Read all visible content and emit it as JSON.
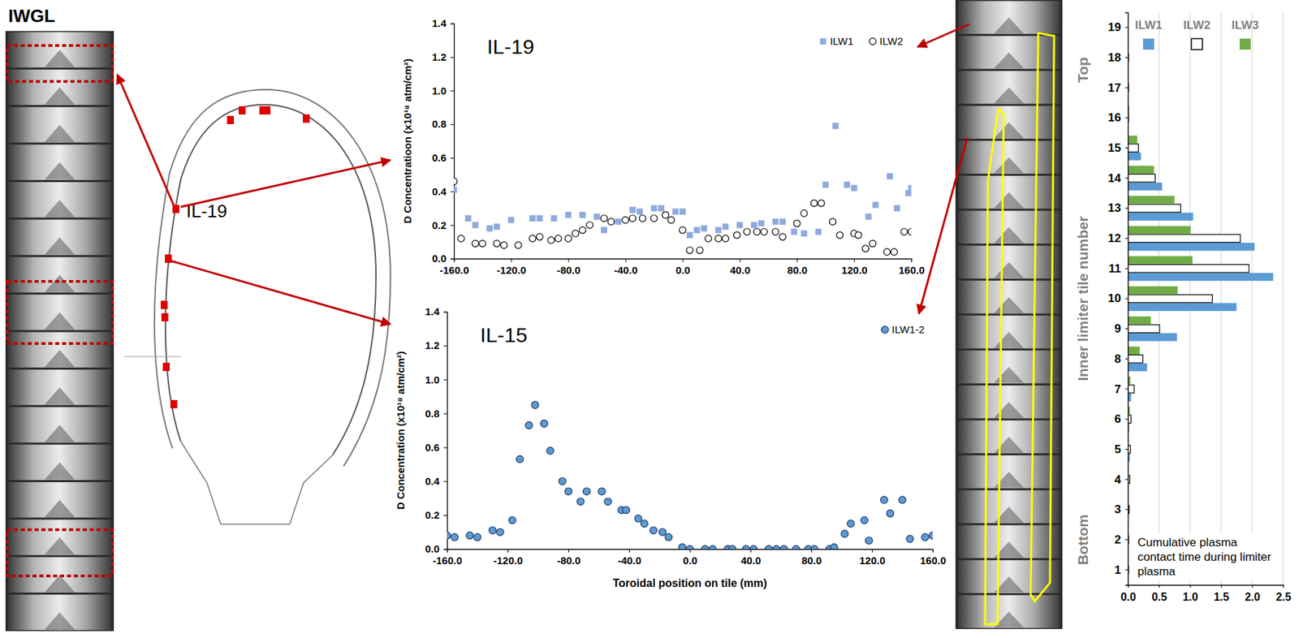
{
  "photo_label": "IWGL",
  "diagram_label": "IL-19",
  "chart_data": [
    {
      "type": "scatter",
      "title": "IL-19",
      "ylabel": "D Concentratioon (x10¹⁸ atm/cm²)",
      "xlim": [
        -160,
        160
      ],
      "xticks": [
        {
          "value": -160,
          "label": "-160.0"
        },
        {
          "value": -120,
          "label": "-120.0"
        },
        {
          "value": -80,
          "label": "-80.0"
        },
        {
          "value": -40,
          "label": "-40.0"
        },
        {
          "value": 0,
          "label": "0.0"
        },
        {
          "value": 40,
          "label": "40.0"
        },
        {
          "value": 80,
          "label": "80.0"
        },
        {
          "value": 120,
          "label": "120.0"
        },
        {
          "value": 160,
          "label": "160.0"
        }
      ],
      "ylim": [
        0,
        1.4
      ],
      "yticks": [
        {
          "value": 0,
          "label": "0.0"
        },
        0.2,
        0.4,
        0.6,
        0.8,
        {
          "value": 1,
          "label": "1.0"
        },
        1.2,
        1.4
      ],
      "legend": "top-right",
      "series": [
        {
          "name": "ILW1",
          "color": "#8faadc",
          "marker": "square",
          "x": [
            -160,
            -150,
            -145,
            -135,
            -130,
            -120,
            -105,
            -100,
            -90,
            -80,
            -70,
            -60,
            -55,
            -45,
            -35,
            -30,
            -20,
            -15,
            -5,
            0,
            5,
            10,
            15,
            25,
            30,
            40,
            50,
            55,
            65,
            70,
            78,
            85,
            95,
            100,
            107,
            115,
            120,
            130,
            135,
            145,
            150,
            158,
            160
          ],
          "values": [
            0.41,
            0.24,
            0.2,
            0.18,
            0.19,
            0.23,
            0.24,
            0.24,
            0.24,
            0.26,
            0.26,
            0.25,
            0.17,
            0.22,
            0.29,
            0.28,
            0.3,
            0.3,
            0.28,
            0.28,
            0.14,
            0.17,
            0.18,
            0.17,
            0.19,
            0.2,
            0.2,
            0.21,
            0.22,
            0.22,
            0.16,
            0.15,
            0.16,
            0.44,
            0.79,
            0.44,
            0.42,
            0.25,
            0.32,
            0.49,
            0.3,
            0.39,
            0.42
          ]
        },
        {
          "name": "ILW2",
          "color": "#000000",
          "marker": "circle-open",
          "x": [
            -160,
            -155,
            -145,
            -140,
            -130,
            -125,
            -115,
            -105,
            -100,
            -92,
            -87,
            -80,
            -75,
            -70,
            -65,
            -55,
            -50,
            -40,
            -35,
            -28,
            -20,
            -12,
            -8,
            0,
            5,
            12,
            18,
            25,
            30,
            38,
            45,
            52,
            57,
            65,
            70,
            80,
            85,
            92,
            97,
            105,
            110,
            120,
            123,
            128,
            133,
            143,
            148,
            155,
            160
          ],
          "values": [
            0.46,
            0.12,
            0.09,
            0.09,
            0.09,
            0.08,
            0.08,
            0.12,
            0.13,
            0.11,
            0.12,
            0.12,
            0.15,
            0.17,
            0.2,
            0.24,
            0.22,
            0.23,
            0.24,
            0.24,
            0.24,
            0.26,
            0.23,
            0.17,
            0.05,
            0.05,
            0.12,
            0.12,
            0.12,
            0.14,
            0.16,
            0.16,
            0.16,
            0.16,
            0.13,
            0.21,
            0.27,
            0.33,
            0.33,
            0.22,
            0.14,
            0.15,
            0.14,
            0.06,
            0.09,
            0.04,
            0.04,
            0.16,
            0.16
          ]
        }
      ]
    },
    {
      "type": "scatter",
      "title": "IL-15",
      "xlabel": "Toroidal position on tile (mm)",
      "ylabel": "D Concentration (x10¹⁸ atm/cm²)",
      "xlim": [
        -160,
        160
      ],
      "xticks": [
        {
          "value": -160,
          "label": "-160.0"
        },
        {
          "value": -120,
          "label": "-120.0"
        },
        {
          "value": -80,
          "label": "-80.0"
        },
        {
          "value": -40,
          "label": "-40.0"
        },
        {
          "value": 0,
          "label": "0.0"
        },
        {
          "value": 40,
          "label": "40.0"
        },
        {
          "value": 80,
          "label": "80.0"
        },
        {
          "value": 120,
          "label": "120.0"
        },
        {
          "value": 160,
          "label": "160.0"
        }
      ],
      "ylim": [
        0,
        1.4
      ],
      "yticks": [
        {
          "value": 0,
          "label": "0.0"
        },
        0.2,
        0.4,
        0.6,
        0.8,
        {
          "value": 1,
          "label": "1.0"
        },
        1.2,
        1.4
      ],
      "legend": "top-right",
      "series": [
        {
          "name": "ILW1-2",
          "color": "#5b9bd5",
          "marker": "circle",
          "x": [
            -160,
            -155,
            -145,
            -140,
            -130,
            -125,
            -117,
            -112,
            -106,
            -102,
            -96,
            -92,
            -84,
            -80,
            -72,
            -68,
            -58,
            -54,
            -45,
            -42,
            -34,
            -30,
            -24,
            -18,
            -14,
            -5,
            0,
            10,
            15,
            25,
            28,
            37,
            42,
            52,
            57,
            62,
            70,
            78,
            82,
            92,
            95,
            102,
            106,
            115,
            118,
            128,
            132,
            140,
            145,
            155,
            160
          ],
          "values": [
            0.08,
            0.07,
            0.08,
            0.07,
            0.11,
            0.1,
            0.17,
            0.53,
            0.73,
            0.85,
            0.74,
            0.58,
            0.4,
            0.34,
            0.28,
            0.34,
            0.34,
            0.28,
            0.23,
            0.23,
            0.18,
            0.15,
            0.11,
            0.1,
            0.07,
            0.01,
            0,
            0,
            0,
            0,
            0,
            0,
            0,
            0,
            0,
            0,
            0,
            0,
            0,
            0,
            0.01,
            0.09,
            0.15,
            0.17,
            0.05,
            0.29,
            0.21,
            0.29,
            0.06,
            0.07,
            0.08
          ]
        }
      ]
    },
    {
      "type": "bar",
      "orientation": "horizontal",
      "ylabel": "Inner limiter tile number",
      "categories": [
        "1",
        "2",
        "3",
        "4",
        "5",
        "6",
        "7",
        "8",
        "9",
        "10",
        "11",
        "12",
        "13",
        "14",
        "15",
        "16",
        "17",
        "18",
        "19"
      ],
      "xlim": [
        0,
        2.5
      ],
      "xticks": [
        {
          "value": 0,
          "label": "0.0"
        },
        0.5,
        {
          "value": 1,
          "label": "1.0"
        },
        1.5,
        {
          "value": 2,
          "label": "2.0"
        },
        2.5
      ],
      "grid": true,
      "legend": "top",
      "annotations": [
        "Top",
        "Bottom",
        "Cumulative plasma contact time during limiter plasma"
      ],
      "series": [
        {
          "name": "ILW1",
          "color": "#5b9bd5",
          "values": [
            0,
            0,
            0,
            0.01,
            0.03,
            0.02,
            0.05,
            0.31,
            0.79,
            1.75,
            2.34,
            2.04,
            1.05,
            0.55,
            0.21,
            0.01,
            0.01,
            0.01,
            0
          ]
        },
        {
          "name": "ILW2",
          "color": "#ffffff",
          "values": [
            0.01,
            0.01,
            0.02,
            0.03,
            0.04,
            0.05,
            0.1,
            0.24,
            0.51,
            1.36,
            1.95,
            1.81,
            0.85,
            0.44,
            0.17,
            0.01,
            0.01,
            0.01,
            0
          ]
        },
        {
          "name": "ILW3",
          "color": "#70ad47",
          "values": [
            0,
            0,
            0,
            0.01,
            0.01,
            0.03,
            0.04,
            0.19,
            0.37,
            0.8,
            1.04,
            1.01,
            0.75,
            0.42,
            0.15,
            0.02,
            0.01,
            0.01,
            0
          ]
        }
      ]
    }
  ]
}
